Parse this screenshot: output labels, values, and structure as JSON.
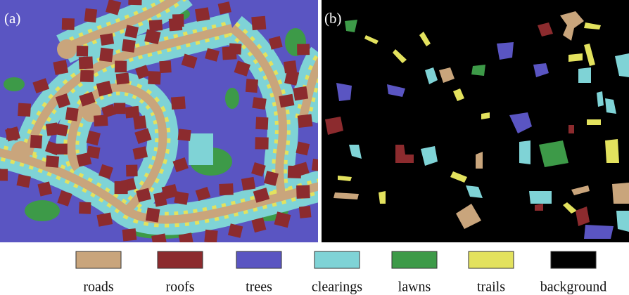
{
  "panels": [
    {
      "label": "(a)"
    },
    {
      "label": "(b)"
    }
  ],
  "legend": [
    {
      "name": "roads",
      "color": "#c9a57c"
    },
    {
      "name": "roofs",
      "color": "#8c2b2e"
    },
    {
      "name": "trees",
      "color": "#5a55c2"
    },
    {
      "name": "clearings",
      "color": "#7fd3d6"
    },
    {
      "name": "lawns",
      "color": "#3d9a48"
    },
    {
      "name": "trails",
      "color": "#e3e25e"
    },
    {
      "name": "background",
      "color": "#000000"
    }
  ]
}
